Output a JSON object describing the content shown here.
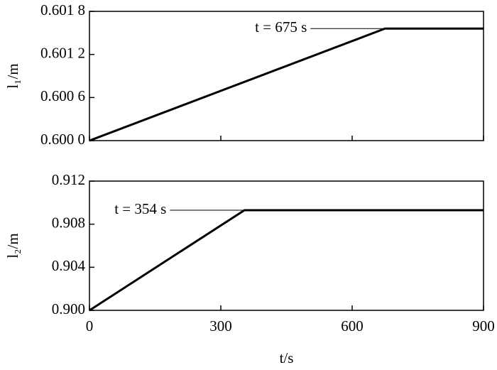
{
  "chart_data": [
    {
      "type": "line",
      "ylabel": "l₁/m",
      "annotation": "t = 675 s",
      "x": [
        0,
        675,
        900
      ],
      "series": [
        {
          "color": "#000000",
          "values": [
            0.6,
            0.60156,
            0.60156
          ]
        }
      ],
      "xlim": [
        0,
        900
      ],
      "xticks": [
        0,
        300,
        600,
        900
      ],
      "ylim": [
        0.6,
        0.6018
      ],
      "yticks": [
        {
          "value": 0.6,
          "label": "0.600 0"
        },
        {
          "value": 0.6006,
          "label": "0.600 6"
        },
        {
          "value": 0.6012,
          "label": "0.601 2"
        },
        {
          "value": 0.6018,
          "label": "0.601 8"
        }
      ]
    },
    {
      "type": "line",
      "ylabel": "l₂/m",
      "xlabel": "t/s",
      "annotation": "t = 354 s",
      "x": [
        0,
        354,
        900
      ],
      "series": [
        {
          "color": "#000000",
          "values": [
            0.9,
            0.9093,
            0.9093
          ]
        }
      ],
      "xlim": [
        0,
        900
      ],
      "xticks": [
        0,
        300,
        600,
        900
      ],
      "ylim": [
        0.9,
        0.912
      ],
      "yticks": [
        {
          "value": 0.9,
          "label": "0.900"
        },
        0.904,
        0.908,
        0.912
      ]
    }
  ]
}
